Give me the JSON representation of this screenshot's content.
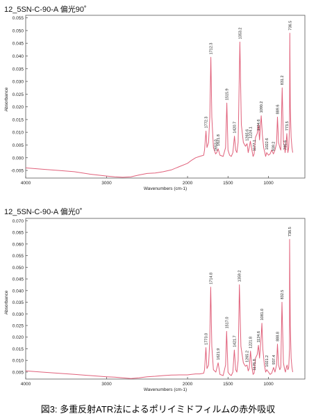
{
  "caption": "図3: 多重反射ATR法によるポリイミドフィルムの赤外吸収",
  "chart_data": [
    {
      "type": "line",
      "title": "12_5SN-C-90-A 偏光90˚",
      "xlabel": "Wavenumbers (cm-1)",
      "ylabel": "Absorbance",
      "xlim": [
        4000,
        550
      ],
      "ylim": [
        -0.008,
        0.056
      ],
      "x_ticks": [
        4000,
        3000,
        2000,
        1500,
        1000
      ],
      "y_ticks": [
        -0.005,
        0.0,
        0.005,
        0.01,
        0.015,
        0.02,
        0.025,
        0.03,
        0.035,
        0.04,
        0.045,
        0.05,
        0.055
      ],
      "series": [
        {
          "color": "#e0607a",
          "x": [
            4000,
            3800,
            3600,
            3400,
            3200,
            3000,
            2900,
            2800,
            2700,
            2600,
            2500,
            2400,
            2300,
            2200,
            2100,
            2000,
            1950,
            1900,
            1850,
            1800,
            1790,
            1772,
            1760,
            1740,
            1725,
            1712,
            1700,
            1680,
            1653,
            1640,
            1621,
            1600,
            1560,
            1530,
            1515,
            1500,
            1480,
            1460,
            1440,
            1420,
            1405,
            1390,
            1375,
            1353,
            1335,
            1310,
            1285,
            1265,
            1250,
            1238,
            1224,
            1205,
            1190,
            1177,
            1160,
            1140,
            1124,
            1110,
            1090,
            1075,
            1060,
            1045,
            1035,
            1022,
            1000,
            980,
            960,
            939,
            920,
            900,
            889,
            875,
            860,
            848,
            831,
            815,
            800,
            795,
            787,
            773,
            760,
            750,
            740,
            736,
            730,
            720,
            710,
            700
          ],
          "y": [
            -0.004,
            -0.0045,
            -0.005,
            -0.0055,
            -0.0065,
            -0.0072,
            -0.0075,
            -0.0077,
            -0.0075,
            -0.0068,
            -0.0062,
            -0.006,
            -0.0055,
            -0.0048,
            -0.0035,
            -0.0022,
            -0.001,
            0.0,
            0.0005,
            0.001,
            0.003,
            0.0105,
            0.004,
            0.006,
            0.016,
            0.0395,
            0.016,
            0.004,
            0.0015,
            0.002,
            0.0035,
            0.001,
            0.0005,
            0.004,
            0.0215,
            0.003,
            0.001,
            0.0005,
            0.002,
            0.0085,
            0.003,
            0.002,
            0.006,
            0.0455,
            0.013,
            0.006,
            0.0045,
            0.0055,
            0.002,
            0.004,
            0.0065,
            0.003,
            0.0005,
            0.0015,
            0.008,
            0.0095,
            0.013,
            0.007,
            0.0165,
            0.009,
            0.004,
            0.002,
            0.0005,
            0.002,
            0.001,
            0.0015,
            0.003,
            0.0015,
            0.003,
            0.0055,
            0.016,
            0.006,
            0.004,
            0.003,
            0.0275,
            0.006,
            0.004,
            0.002,
            0.004,
            0.0095,
            0.002,
            0.004,
            0.012,
            0.049,
            0.02,
            0.008,
            0.004,
            0.002
          ]
        }
      ],
      "annotations": [
        {
          "x": 1772.3,
          "y": 0.0105,
          "label": "1772.3"
        },
        {
          "x": 1712.3,
          "y": 0.0395,
          "label": "1712.3"
        },
        {
          "x": 1653.0,
          "y": 0.0015,
          "label": "1653.0"
        },
        {
          "x": 1621.8,
          "y": 0.0035,
          "label": "1621.8"
        },
        {
          "x": 1515.9,
          "y": 0.0215,
          "label": "1515.9"
        },
        {
          "x": 1420.7,
          "y": 0.0085,
          "label": "1420.7"
        },
        {
          "x": 1353.2,
          "y": 0.0455,
          "label": "1353.2"
        },
        {
          "x": 1265.6,
          "y": 0.0055,
          "label": "1265.6"
        },
        {
          "x": 1224.1,
          "y": 0.0065,
          "label": "1224.1"
        },
        {
          "x": 1177.1,
          "y": 0.0015,
          "label": "1177.1"
        },
        {
          "x": 1124.6,
          "y": 0.0095,
          "label": "1124.6"
        },
        {
          "x": 1090.2,
          "y": 0.0165,
          "label": "1090.2"
        },
        {
          "x": 1022.6,
          "y": 0.002,
          "label": "1022.6"
        },
        {
          "x": 939.2,
          "y": 0.0015,
          "label": "939.2"
        },
        {
          "x": 889.6,
          "y": 0.016,
          "label": "889.6"
        },
        {
          "x": 831.2,
          "y": 0.0275,
          "label": "831.2"
        },
        {
          "x": 795.6,
          "y": 0.002,
          "label": "795.6"
        },
        {
          "x": 773.5,
          "y": 0.0095,
          "label": "773.5"
        },
        {
          "x": 736.5,
          "y": 0.049,
          "label": "736.5"
        }
      ]
    },
    {
      "type": "line",
      "title": "12_5SN-C-90-A 偏光0˚",
      "xlabel": "Wavenumbers (cm-1)",
      "ylabel": "Absorbance",
      "xlim": [
        4000,
        550
      ],
      "ylim": [
        0.002,
        0.071
      ],
      "x_ticks": [
        4000,
        3000,
        2000,
        1500,
        1000
      ],
      "y_ticks": [
        0.005,
        0.01,
        0.015,
        0.02,
        0.025,
        0.03,
        0.035,
        0.04,
        0.045,
        0.05,
        0.055,
        0.06,
        0.065,
        0.07
      ],
      "series": [
        {
          "color": "#e0607a",
          "x": [
            4000,
            3800,
            3600,
            3400,
            3200,
            3000,
            2900,
            2800,
            2700,
            2600,
            2500,
            2400,
            2300,
            2200,
            2100,
            2000,
            1950,
            1900,
            1850,
            1800,
            1790,
            1773,
            1760,
            1740,
            1726,
            1714,
            1700,
            1680,
            1650,
            1622,
            1600,
            1560,
            1530,
            1517,
            1500,
            1480,
            1460,
            1440,
            1422,
            1405,
            1390,
            1375,
            1359,
            1340,
            1310,
            1285,
            1265,
            1250,
            1238,
            1222,
            1205,
            1190,
            1177,
            1160,
            1140,
            1124,
            1110,
            1090,
            1081,
            1070,
            1050,
            1035,
            1021,
            1000,
            980,
            960,
            937,
            920,
            900,
            889,
            875,
            860,
            848,
            833,
            815,
            800,
            790,
            780,
            770,
            760,
            750,
            740,
            739,
            730,
            720,
            710,
            700
          ],
          "y": [
            0.0055,
            0.005,
            0.0045,
            0.004,
            0.0035,
            0.003,
            0.0028,
            0.0025,
            0.0022,
            0.0025,
            0.003,
            0.0032,
            0.0035,
            0.0037,
            0.0038,
            0.0038,
            0.004,
            0.0042,
            0.0042,
            0.0045,
            0.006,
            0.0155,
            0.0065,
            0.008,
            0.018,
            0.0415,
            0.016,
            0.006,
            0.005,
            0.009,
            0.004,
            0.0035,
            0.008,
            0.0225,
            0.005,
            0.004,
            0.0035,
            0.005,
            0.0145,
            0.006,
            0.005,
            0.01,
            0.0425,
            0.016,
            0.009,
            0.0075,
            0.008,
            0.0055,
            0.0065,
            0.014,
            0.007,
            0.004,
            0.0045,
            0.011,
            0.0125,
            0.0165,
            0.011,
            0.0205,
            0.026,
            0.015,
            0.008,
            0.005,
            0.006,
            0.005,
            0.004,
            0.0045,
            0.007,
            0.005,
            0.008,
            0.017,
            0.008,
            0.006,
            0.007,
            0.035,
            0.009,
            0.006,
            0.005,
            0.007,
            0.008,
            0.006,
            0.007,
            0.015,
            0.062,
            0.025,
            0.011,
            0.007,
            0.005
          ]
        }
      ],
      "annotations": [
        {
          "x": 1773.0,
          "y": 0.0155,
          "label": "1773.0"
        },
        {
          "x": 1714.8,
          "y": 0.0415,
          "label": "1714.8"
        },
        {
          "x": 1621.9,
          "y": 0.009,
          "label": "1621.9"
        },
        {
          "x": 1517.0,
          "y": 0.0225,
          "label": "1517.0"
        },
        {
          "x": 1421.7,
          "y": 0.0145,
          "label": "1421.7"
        },
        {
          "x": 1359.2,
          "y": 0.0425,
          "label": "1359.2"
        },
        {
          "x": 1265.2,
          "y": 0.008,
          "label": "1265.2"
        },
        {
          "x": 1221.8,
          "y": 0.014,
          "label": "1221.8"
        },
        {
          "x": 1176.8,
          "y": 0.0045,
          "label": "1176.8"
        },
        {
          "x": 1124.6,
          "y": 0.0165,
          "label": "1124.6"
        },
        {
          "x": 1081.0,
          "y": 0.026,
          "label": "1081.0"
        },
        {
          "x": 1021.2,
          "y": 0.006,
          "label": "1021.2"
        },
        {
          "x": 937.4,
          "y": 0.007,
          "label": "937.4"
        },
        {
          "x": 888.8,
          "y": 0.017,
          "label": "888.8"
        },
        {
          "x": 832.5,
          "y": 0.035,
          "label": "832.5"
        },
        {
          "x": 738.5,
          "y": 0.062,
          "label": "738.5"
        }
      ]
    }
  ]
}
